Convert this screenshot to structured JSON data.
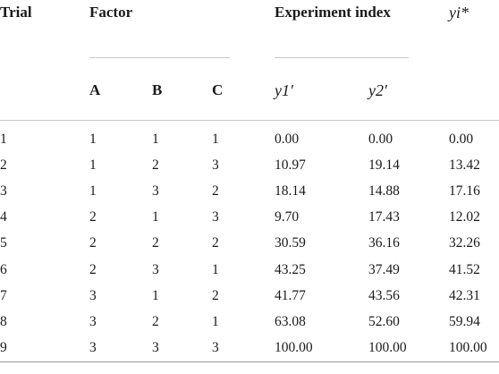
{
  "table": {
    "headers": {
      "trial": "Trial",
      "factor": "Factor",
      "experiment_index": "Experiment index",
      "yi": "yi*",
      "a": "A",
      "b": "B",
      "c": "C",
      "y1": "y1′",
      "y2": "y2′"
    },
    "rows": [
      [
        "1",
        "1",
        "1",
        "1",
        "0.00",
        "0.00",
        "0.00"
      ],
      [
        "2",
        "1",
        "2",
        "3",
        "10.97",
        "19.14",
        "13.42"
      ],
      [
        "3",
        "1",
        "3",
        "2",
        "18.14",
        "14.88",
        "17.16"
      ],
      [
        "4",
        "2",
        "1",
        "3",
        "9.70",
        "17.43",
        "12.02"
      ],
      [
        "5",
        "2",
        "2",
        "2",
        "30.59",
        "36.16",
        "32.26"
      ],
      [
        "6",
        "2",
        "3",
        "1",
        "43.25",
        "37.49",
        "41.52"
      ],
      [
        "7",
        "3",
        "1",
        "2",
        "41.77",
        "43.56",
        "42.31"
      ],
      [
        "8",
        "3",
        "2",
        "1",
        "63.08",
        "52.60",
        "59.94"
      ],
      [
        "9",
        "3",
        "3",
        "3",
        "100.00",
        "100.00",
        "100.00"
      ]
    ]
  }
}
